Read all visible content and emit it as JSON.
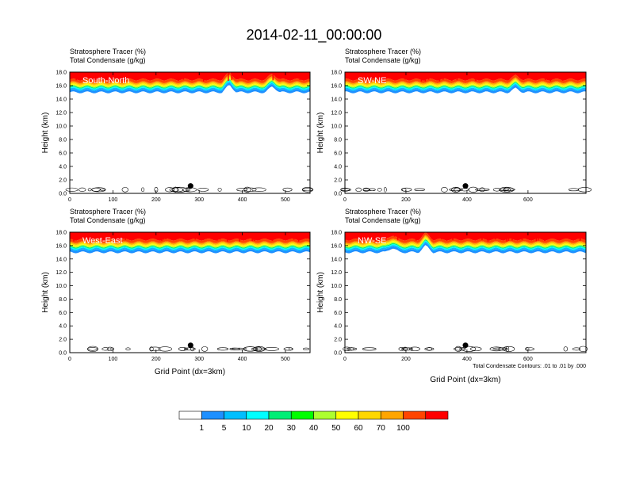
{
  "title": "2014-02-11_00:00:00",
  "colorbar": {
    "colors": [
      "#ffffff",
      "#1e90ff",
      "#00bfff",
      "#00ffff",
      "#00ee76",
      "#00ff00",
      "#adff2f",
      "#ffff00",
      "#ffd700",
      "#ffa500",
      "#ff4500",
      "#ff0000"
    ],
    "labels": [
      "1",
      "5",
      "10",
      "20",
      "30",
      "40",
      "50",
      "60",
      "70",
      "100"
    ]
  },
  "chart_data": [
    {
      "type": "heatmap",
      "panel_label": "South-North",
      "header_line1": "Stratosphere Tracer   (%)",
      "header_line2": "Total Condensate   (g/kg)",
      "xlabel": "",
      "ylabel": "Height (km)",
      "xlim": [
        0,
        557
      ],
      "ylim": [
        0,
        18
      ],
      "x_ticks": [
        "0",
        "100",
        "200",
        "300",
        "400",
        "500"
      ],
      "y_ticks": [
        "0.0",
        "2.0",
        "4.0",
        "6.0",
        "8.0",
        "10.0",
        "12.0",
        "14.0",
        "16.0",
        "18.0"
      ],
      "marker_x": 280,
      "marker_y": 1.1,
      "layer_base_km": 15.0,
      "bumps": [
        {
          "x": 370,
          "h": 1.1
        },
        {
          "x": 470,
          "h": 0.9
        }
      ]
    },
    {
      "type": "heatmap",
      "panel_label": "SW-NE",
      "header_line1": "Stratosphere Tracer   (%)",
      "header_line2": "Total Condensate   (g/kg)",
      "xlabel": "",
      "ylabel": "Height (km)",
      "xlim": [
        0,
        790
      ],
      "ylim": [
        0,
        18
      ],
      "x_ticks": [
        "0",
        "200",
        "400",
        "600"
      ],
      "y_ticks": [
        "0.0",
        "2.0",
        "4.0",
        "6.0",
        "8.0",
        "10.0",
        "12.0",
        "14.0",
        "16.0",
        "18.0"
      ],
      "marker_x": 395,
      "marker_y": 1.1,
      "layer_base_km": 15.0,
      "bumps": [
        {
          "x": 560,
          "h": 0.6
        }
      ]
    },
    {
      "type": "heatmap",
      "panel_label": "West-East",
      "header_line1": "Stratosphere Tracer   (%)",
      "header_line2": "Total Condensate   (g/kg)",
      "xlabel": "Grid Point (dx=3km)",
      "ylabel": "Height (km)",
      "xlim": [
        0,
        557
      ],
      "ylim": [
        0,
        18
      ],
      "x_ticks": [
        "0",
        "100",
        "200",
        "300",
        "400",
        "500"
      ],
      "y_ticks": [
        "0.0",
        "2.0",
        "4.0",
        "6.0",
        "8.0",
        "10.0",
        "12.0",
        "14.0",
        "16.0",
        "18.0"
      ],
      "marker_x": 280,
      "marker_y": 1.1,
      "layer_base_km": 15.0,
      "bumps": []
    },
    {
      "type": "heatmap",
      "panel_label": "NW-SE",
      "header_line1": "Stratosphere Tracer   (%)",
      "header_line2": "Total Condensate   (g/kg)",
      "xlabel": "Grid Point (dx=3km)",
      "ylabel": "Height (km)",
      "xlim": [
        0,
        790
      ],
      "ylim": [
        0,
        18
      ],
      "x_ticks": [
        "0",
        "200",
        "400",
        "600"
      ],
      "y_ticks": [
        "0.0",
        "2.0",
        "4.0",
        "6.0",
        "8.0",
        "10.0",
        "12.0",
        "14.0",
        "16.0",
        "18.0"
      ],
      "marker_x": 395,
      "marker_y": 1.1,
      "layer_base_km": 15.0,
      "bumps": [
        {
          "x": 155,
          "h": 0.7
        },
        {
          "x": 265,
          "h": 1.0
        }
      ],
      "note": "Total Condensate Contours: .01 to .01 by .000"
    }
  ]
}
